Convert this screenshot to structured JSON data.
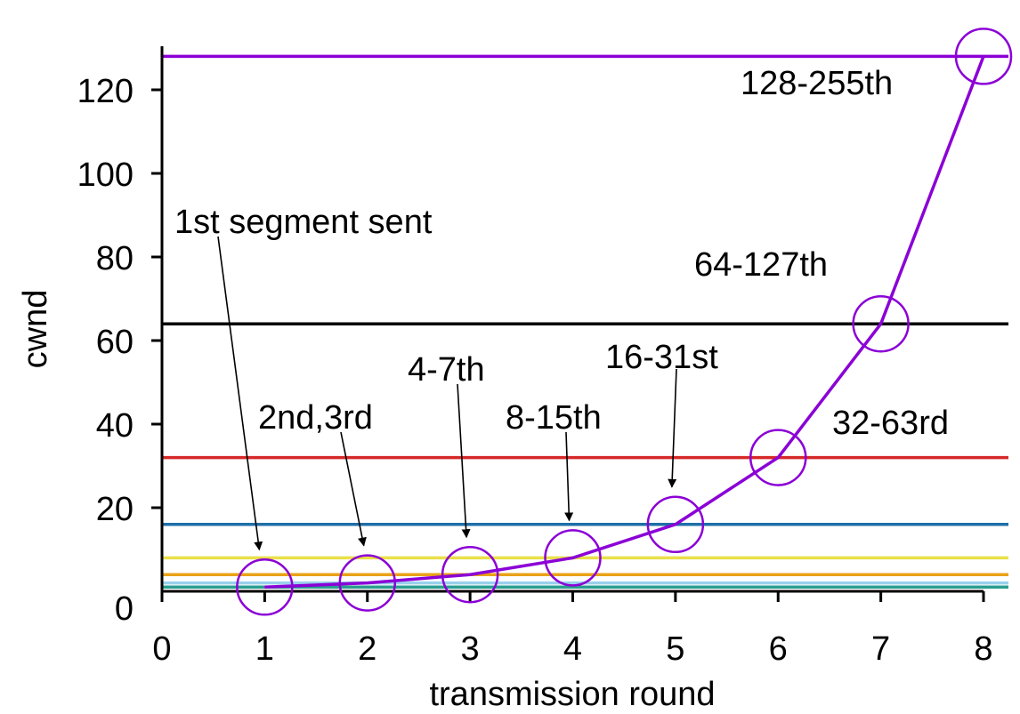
{
  "chart_data": {
    "type": "line",
    "xlabel": "transmission round",
    "ylabel": "cwnd",
    "xlim": [
      0,
      8
    ],
    "ylim": [
      0,
      130
    ],
    "x_ticks": [
      0,
      1,
      2,
      3,
      4,
      5,
      6,
      7,
      8
    ],
    "y_ticks": [
      0,
      20,
      40,
      60,
      80,
      100,
      120
    ],
    "grid": false,
    "series": [
      {
        "color": "#8b00d6",
        "marker": "open-circle",
        "x": [
          1,
          2,
          3,
          4,
          5,
          6,
          7,
          8
        ],
        "values": [
          1,
          2,
          4,
          8,
          16,
          32,
          64,
          128
        ]
      }
    ],
    "reference_lines": [
      {
        "y": 1,
        "color": "#2a9d8f"
      },
      {
        "y": 2,
        "color": "#9ad0ec"
      },
      {
        "y": 4,
        "color": "#e8a317"
      },
      {
        "y": 8,
        "color": "#e8e04a"
      },
      {
        "y": 16,
        "color": "#1f6fa8"
      },
      {
        "y": 32,
        "color": "#d62828"
      },
      {
        "y": 64,
        "color": "#000000"
      },
      {
        "y": 128,
        "color": "#8b00d6"
      }
    ],
    "annotations": [
      {
        "text": "1st segment sent",
        "point_x": 1,
        "point_y": 1,
        "arrow": true
      },
      {
        "text": "2nd,3rd",
        "point_x": 2,
        "point_y": 2,
        "arrow": true
      },
      {
        "text": "4-7th",
        "point_x": 3,
        "point_y": 4,
        "arrow": true
      },
      {
        "text": "8-15th",
        "point_x": 4,
        "point_y": 8,
        "arrow": true
      },
      {
        "text": "16-31st",
        "point_x": 5,
        "point_y": 16,
        "arrow": true
      },
      {
        "text": "32-63rd",
        "point_x": 6,
        "point_y": 32,
        "arrow": false
      },
      {
        "text": "64-127th",
        "point_x": 7,
        "point_y": 64,
        "arrow": false
      },
      {
        "text": "128-255th",
        "point_x": 8,
        "point_y": 128,
        "arrow": false
      }
    ]
  }
}
